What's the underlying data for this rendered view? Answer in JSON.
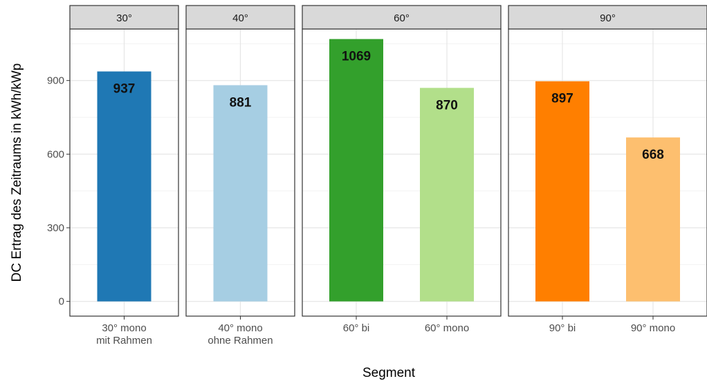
{
  "chart_data": {
    "type": "bar",
    "xlabel": "Segment",
    "ylabel": "DC Ertrag des Zeitraums in kWh/kWp",
    "ylim": [
      -60,
      1110
    ],
    "yticks": [
      0,
      300,
      600,
      900
    ],
    "grid": true,
    "facets": [
      {
        "label": "30°",
        "bars": [
          {
            "category": "30° mono\nmit Rahmen",
            "value": 937,
            "color": "#1f78b4"
          }
        ]
      },
      {
        "label": "40°",
        "bars": [
          {
            "category": "40° mono\nohne Rahmen",
            "value": 881,
            "color": "#a6cee3"
          }
        ]
      },
      {
        "label": "60°",
        "bars": [
          {
            "category": "60° bi",
            "value": 1069,
            "color": "#33a02c"
          },
          {
            "category": "60° mono",
            "value": 870,
            "color": "#b2df8a"
          }
        ]
      },
      {
        "label": "90°",
        "bars": [
          {
            "category": "90° bi",
            "value": 897,
            "color": "#ff7f00"
          },
          {
            "category": "90° mono",
            "value": 668,
            "color": "#fdbf6f"
          }
        ]
      }
    ]
  }
}
